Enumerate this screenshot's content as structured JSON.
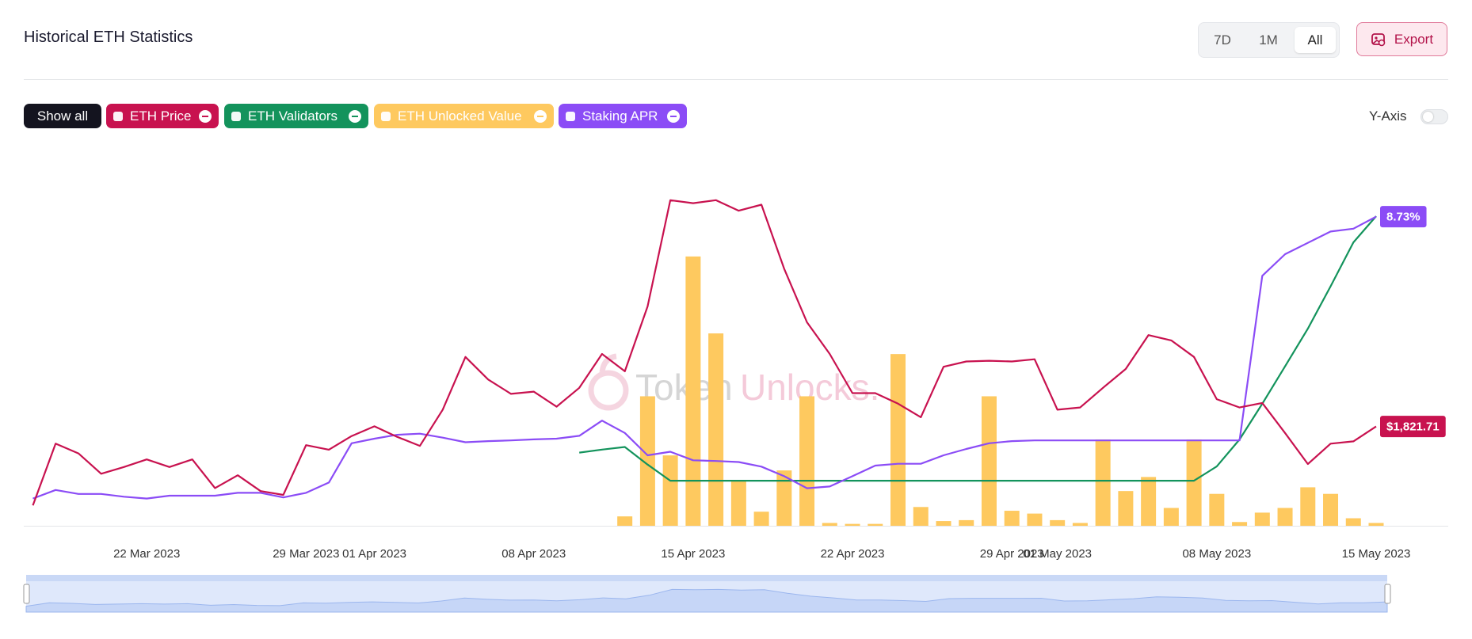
{
  "chart_data": {
    "type": "line",
    "title": "Historical ETH Statistics",
    "x": [
      "2023-03-17",
      "2023-03-18",
      "2023-03-19",
      "2023-03-20",
      "2023-03-21",
      "2023-03-22",
      "2023-03-23",
      "2023-03-24",
      "2023-03-25",
      "2023-03-26",
      "2023-03-27",
      "2023-03-28",
      "2023-03-29",
      "2023-03-30",
      "2023-03-31",
      "2023-04-01",
      "2023-04-02",
      "2023-04-03",
      "2023-04-04",
      "2023-04-05",
      "2023-04-06",
      "2023-04-07",
      "2023-04-08",
      "2023-04-09",
      "2023-04-10",
      "2023-04-11",
      "2023-04-12",
      "2023-04-13",
      "2023-04-14",
      "2023-04-15",
      "2023-04-16",
      "2023-04-17",
      "2023-04-18",
      "2023-04-19",
      "2023-04-20",
      "2023-04-21",
      "2023-04-22",
      "2023-04-23",
      "2023-04-24",
      "2023-04-25",
      "2023-04-26",
      "2023-04-27",
      "2023-04-28",
      "2023-04-29",
      "2023-04-30",
      "2023-05-01",
      "2023-05-02",
      "2023-05-03",
      "2023-05-04",
      "2023-05-05",
      "2023-05-06",
      "2023-05-07",
      "2023-05-08",
      "2023-05-09",
      "2023-05-10",
      "2023-05-11",
      "2023-05-12",
      "2023-05-13",
      "2023-05-14",
      "2023-05-15"
    ],
    "xlim": [
      "2023-03-17",
      "2023-05-15"
    ],
    "xticks": [
      {
        "value": "2023-03-22",
        "label": "22 Mar 2023"
      },
      {
        "value": "2023-03-29",
        "label": "29 Mar 2023"
      },
      {
        "value": "2023-04-01",
        "label": "01 Apr 2023"
      },
      {
        "value": "2023-04-08",
        "label": "08 Apr 2023"
      },
      {
        "value": "2023-04-15",
        "label": "15 Apr 2023"
      },
      {
        "value": "2023-04-22",
        "label": "22 Apr 2023"
      },
      {
        "value": "2023-04-29",
        "label": "29 Apr 2023"
      },
      {
        "value": "2023-05-01",
        "label": "01 May 2023"
      },
      {
        "value": "2023-05-08",
        "label": "08 May 2023"
      },
      {
        "value": "2023-05-15",
        "label": "15 May 2023"
      }
    ],
    "series": [
      {
        "name": "ETH Price",
        "type": "line",
        "color": "#c8124f",
        "ylim": [
          1690,
          2188
        ],
        "values": [
          1717,
          1799,
          1786,
          1759,
          1768,
          1778,
          1768,
          1778,
          1740,
          1757,
          1736,
          1731,
          1797,
          1791,
          1809,
          1822,
          1808,
          1796,
          1844,
          1914,
          1884,
          1865,
          1868,
          1848,
          1873,
          1918,
          1895,
          1981,
          2122,
          2118,
          2122,
          2108,
          2116,
          2031,
          1960,
          1918,
          1866,
          1866,
          1852,
          1834,
          1901,
          1908,
          1909,
          1908,
          1911,
          1844,
          1847,
          1873,
          1898,
          1943,
          1936,
          1914,
          1858,
          1847,
          1853,
          1813,
          1772,
          1799,
          1802,
          1821.71
        ],
        "value_labels": [
          null,
          null,
          null,
          null,
          null,
          null,
          null,
          null,
          null,
          null,
          null,
          null,
          null,
          null,
          null,
          null,
          null,
          null,
          null,
          null,
          null,
          null,
          null,
          null,
          null,
          null,
          null,
          null,
          null,
          null,
          null,
          null,
          null,
          null,
          null,
          null,
          null,
          null,
          null,
          null,
          null,
          null,
          null,
          null,
          null,
          null,
          null,
          null,
          null,
          null,
          null,
          null,
          null,
          null,
          null,
          null,
          null,
          null,
          null,
          "$1,821.71"
        ]
      },
      {
        "name": "ETH Validators",
        "type": "line",
        "color": "#13935c",
        "ylim": [
          0,
          1000
        ],
        "values": [
          null,
          null,
          null,
          null,
          null,
          null,
          null,
          null,
          null,
          null,
          null,
          null,
          null,
          null,
          null,
          null,
          null,
          null,
          null,
          null,
          null,
          null,
          null,
          null,
          195,
          203,
          210,
          163,
          120,
          120,
          120,
          120,
          120,
          120,
          120,
          120,
          120,
          120,
          120,
          120,
          120,
          120,
          120,
          120,
          120,
          120,
          120,
          120,
          120,
          120,
          120,
          120,
          158,
          230,
          325,
          425,
          525,
          638,
          755,
          825
        ]
      },
      {
        "name": "ETH Unlocked Value",
        "type": "bar",
        "color": "#fec95f",
        "ylim": [
          0,
          400000000
        ],
        "values": [
          null,
          null,
          null,
          null,
          null,
          null,
          null,
          null,
          null,
          null,
          null,
          null,
          null,
          null,
          null,
          null,
          null,
          null,
          null,
          null,
          null,
          null,
          null,
          null,
          null,
          null,
          10000000,
          138000000,
          75000000,
          287000000,
          205000000,
          48000000,
          15000000,
          59000000,
          138000000,
          3000000,
          2000000,
          2000000,
          183000000,
          20000000,
          5000000,
          6000000,
          138000000,
          16000000,
          13000000,
          6000000,
          3000000,
          92000000,
          37000000,
          52000000,
          19000000,
          92000000,
          34000000,
          4000000,
          14000000,
          19000000,
          41000000,
          34000000,
          8000000,
          3000000
        ]
      },
      {
        "name": "Staking APR",
        "type": "line",
        "color": "#8b4cf6",
        "ylim": [
          0,
          10.6
        ],
        "values": [
          0.77,
          1.01,
          0.9,
          0.9,
          0.82,
          0.77,
          0.85,
          0.85,
          0.85,
          0.93,
          0.93,
          0.8,
          0.93,
          1.22,
          2.33,
          2.46,
          2.57,
          2.6,
          2.49,
          2.36,
          2.39,
          2.41,
          2.44,
          2.46,
          2.54,
          2.97,
          2.62,
          1.99,
          2.09,
          1.85,
          1.83,
          1.8,
          1.67,
          1.4,
          1.06,
          1.11,
          1.4,
          1.7,
          1.75,
          1.75,
          1.99,
          2.17,
          2.33,
          2.39,
          2.41,
          2.41,
          2.41,
          2.41,
          2.41,
          2.41,
          2.41,
          2.41,
          2.41,
          2.41,
          7.06,
          7.67,
          7.99,
          8.31,
          8.39,
          8.73
        ],
        "value_labels": [
          null,
          null,
          null,
          null,
          null,
          null,
          null,
          null,
          null,
          null,
          null,
          null,
          null,
          null,
          null,
          null,
          null,
          null,
          null,
          null,
          null,
          null,
          null,
          null,
          null,
          null,
          null,
          null,
          null,
          null,
          null,
          null,
          null,
          null,
          null,
          null,
          null,
          null,
          null,
          null,
          null,
          null,
          null,
          null,
          null,
          null,
          null,
          null,
          null,
          null,
          null,
          null,
          null,
          null,
          null,
          null,
          null,
          null,
          null,
          "8.73%"
        ]
      }
    ]
  },
  "toolbar": {
    "ranges": [
      "7D",
      "1M",
      "All"
    ],
    "active": 2,
    "export": "Export"
  },
  "legend_controls": {
    "show_all": "Show all"
  },
  "y_axis_toggle": {
    "label": "Y-Axis",
    "on": false
  },
  "watermark": [
    "Token",
    "Unlocks."
  ]
}
